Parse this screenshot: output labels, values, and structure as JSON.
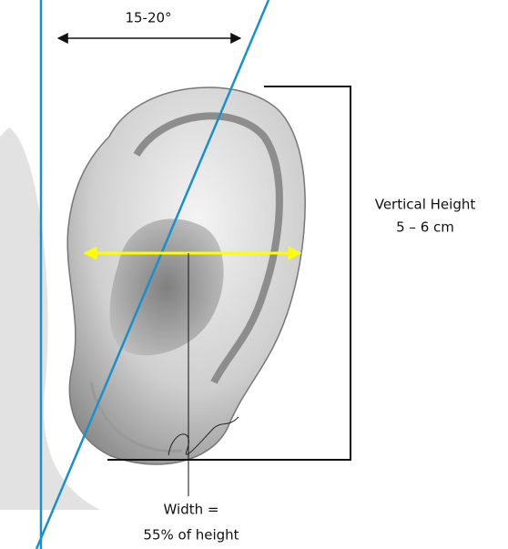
{
  "angle_label": "15-20°",
  "height_label": {
    "line1": "Vertical Height",
    "line2": "5 – 6 cm"
  },
  "width_label": {
    "line1": "Width =",
    "line2": "55% of height"
  }
}
